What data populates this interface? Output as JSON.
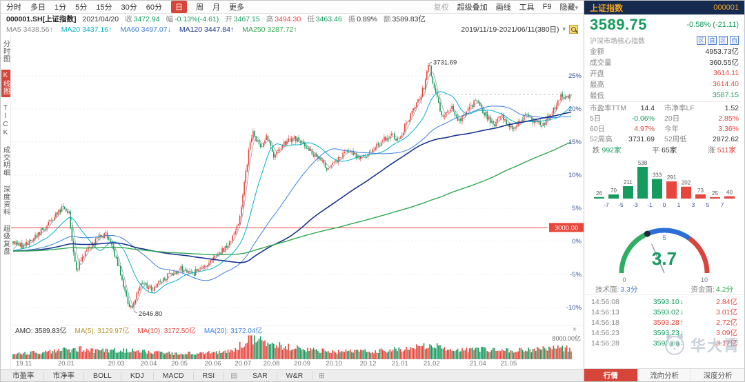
{
  "colors": {
    "up": "#e8453c",
    "down": "#169b5f",
    "header_bg": "#152a4e",
    "header_text": "#f5a623",
    "accent": "#d5453a",
    "axis_text": "#3b5598"
  },
  "icons": {
    "caret_down": "▾",
    "close": "×",
    "grid": "⊞",
    "panel": "▤"
  },
  "toolbar": {
    "periods": [
      "分时",
      "多日",
      "1分",
      "5分",
      "15分",
      "30分",
      "60分",
      "日",
      "周",
      "月",
      "更多"
    ],
    "active_period": "日",
    "right_items": [
      "复权",
      "超级叠加",
      "画线",
      "工具",
      "F9",
      "隐藏"
    ]
  },
  "info_bar": {
    "symbol": "000001.SH[上证指数]",
    "date": "2021/04/20",
    "fields": [
      {
        "label": "收",
        "value": "3472.94",
        "color": "green"
      },
      {
        "label": "幅",
        "value": "-0.13%(-4.61)",
        "color": "green"
      },
      {
        "label": "开",
        "value": "3467.15",
        "color": "green"
      },
      {
        "label": "高",
        "value": "3494.30",
        "color": "red"
      },
      {
        "label": "低",
        "value": "3463.46",
        "color": "green"
      },
      {
        "label": "振",
        "value": "0.89%",
        "color": "black"
      },
      {
        "label": "额",
        "value": "3589.83亿",
        "color": "black"
      }
    ]
  },
  "ma_bar": {
    "items": [
      {
        "text": "MA5 3438.56↑",
        "color": "gray"
      },
      {
        "text": "MA20 3437.16↑",
        "color": "cyan"
      },
      {
        "text": "MA60 3497.07↓",
        "color": "blue"
      },
      {
        "text": "MA120 3447.84↑",
        "color": "navy"
      },
      {
        "text": "MA250 3287.72↑",
        "color": "mgreen"
      }
    ],
    "range": "2019/11/19-2021/06/11(380日)"
  },
  "sidebar": {
    "items": [
      "分时图",
      "K线图",
      "TICK",
      "成交明细",
      "深度资料",
      "超级复盘"
    ],
    "active": "K线图"
  },
  "chart": {
    "type": "candlestick",
    "candles": 380,
    "baseline": 2940.08,
    "prehistory_pct": -1.5,
    "hline_pct": 2.04,
    "hline_label": "3000.00",
    "high_label": "3731.69",
    "low_label": "2646.80",
    "vol_scale": 8000,
    "vol_axis_label": "8000.00亿",
    "y_ticks": [
      {
        "label": "25%",
        "pct": 25
      },
      {
        "label": "20%",
        "pct": 20
      },
      {
        "label": "15%",
        "pct": 15
      },
      {
        "label": "10%",
        "pct": 10
      },
      {
        "label": "5%",
        "pct": 5
      },
      {
        "label": "0%",
        "pct": 0
      },
      {
        "label": "-5%",
        "pct": -5
      },
      {
        "label": "-10%",
        "pct": -10
      }
    ],
    "ma_lines": [
      {
        "n": 5,
        "color": "#9a9a9a",
        "w": 0.8
      },
      {
        "n": 20,
        "color": "#00b0c8",
        "w": 1
      },
      {
        "n": 60,
        "color": "#3b7de0",
        "w": 1
      },
      {
        "n": 120,
        "color": "#17328f",
        "w": 1.6
      },
      {
        "n": 250,
        "color": "#2fa84f",
        "w": 1.4
      }
    ],
    "x_labels": [
      {
        "text": "19.11",
        "f": 0.005
      },
      {
        "text": "20.01",
        "f": 0.095
      },
      {
        "text": "20.03",
        "f": 0.185
      },
      {
        "text": "20.04",
        "f": 0.243
      },
      {
        "text": "20.05",
        "f": 0.298
      },
      {
        "text": "20.06",
        "f": 0.358
      },
      {
        "text": "20.07",
        "f": 0.412
      },
      {
        "text": "20.08",
        "f": 0.463
      },
      {
        "text": "20.09",
        "f": 0.518
      },
      {
        "text": "20.10",
        "f": 0.575
      },
      {
        "text": "20.12",
        "f": 0.636
      },
      {
        "text": "21.01",
        "f": 0.693
      },
      {
        "text": "21.02",
        "f": 0.75
      },
      {
        "text": "21.04",
        "f": 0.833
      },
      {
        "text": "21.05",
        "f": 0.888
      }
    ],
    "keypoints": [
      [
        0.0,
        0.0
      ],
      [
        0.02,
        -0.8
      ],
      [
        0.05,
        1.5
      ],
      [
        0.075,
        3.8
      ],
      [
        0.09,
        5.2
      ],
      [
        0.1,
        4.2
      ],
      [
        0.113,
        -4.5
      ],
      [
        0.125,
        -2.0
      ],
      [
        0.15,
        0.2
      ],
      [
        0.165,
        1.2
      ],
      [
        0.185,
        -2.5
      ],
      [
        0.205,
        -9.3
      ],
      [
        0.212,
        -10.3
      ],
      [
        0.228,
        -6.2
      ],
      [
        0.25,
        -7.2
      ],
      [
        0.27,
        -5.5
      ],
      [
        0.3,
        -4.2
      ],
      [
        0.325,
        -4.8
      ],
      [
        0.355,
        -2.8
      ],
      [
        0.385,
        -0.8
      ],
      [
        0.405,
        3.0
      ],
      [
        0.422,
        13.5
      ],
      [
        0.43,
        16.8
      ],
      [
        0.443,
        13.8
      ],
      [
        0.455,
        15.8
      ],
      [
        0.468,
        12.8
      ],
      [
        0.485,
        14.8
      ],
      [
        0.505,
        15.6
      ],
      [
        0.53,
        13.8
      ],
      [
        0.55,
        12.3
      ],
      [
        0.565,
        10.8
      ],
      [
        0.585,
        12.6
      ],
      [
        0.605,
        13.8
      ],
      [
        0.622,
        12.3
      ],
      [
        0.645,
        13.8
      ],
      [
        0.663,
        15.2
      ],
      [
        0.678,
        16.2
      ],
      [
        0.69,
        15.2
      ],
      [
        0.7,
        17.0
      ],
      [
        0.715,
        19.5
      ],
      [
        0.727,
        21.3
      ],
      [
        0.737,
        23.5
      ],
      [
        0.745,
        26.8
      ],
      [
        0.758,
        22.0
      ],
      [
        0.77,
        18.5
      ],
      [
        0.785,
        20.5
      ],
      [
        0.8,
        18.0
      ],
      [
        0.815,
        19.8
      ],
      [
        0.83,
        21.3
      ],
      [
        0.845,
        19.3
      ],
      [
        0.86,
        17.5
      ],
      [
        0.875,
        18.8
      ],
      [
        0.89,
        17.2
      ],
      [
        0.905,
        17.8
      ],
      [
        0.92,
        19.2
      ],
      [
        0.935,
        18.0
      ],
      [
        0.95,
        17.5
      ],
      [
        0.965,
        19.5
      ],
      [
        0.98,
        21.8
      ],
      [
        1.0,
        22.1
      ]
    ],
    "vol_keypoints": [
      [
        0.0,
        1600
      ],
      [
        0.05,
        2400
      ],
      [
        0.09,
        3000
      ],
      [
        0.12,
        3400
      ],
      [
        0.15,
        2800
      ],
      [
        0.21,
        3000
      ],
      [
        0.25,
        2200
      ],
      [
        0.3,
        1900
      ],
      [
        0.35,
        2300
      ],
      [
        0.39,
        2900
      ],
      [
        0.415,
        5500
      ],
      [
        0.425,
        7200
      ],
      [
        0.435,
        6600
      ],
      [
        0.45,
        5800
      ],
      [
        0.47,
        4800
      ],
      [
        0.5,
        3800
      ],
      [
        0.53,
        3000
      ],
      [
        0.57,
        2600
      ],
      [
        0.62,
        2500
      ],
      [
        0.66,
        2800
      ],
      [
        0.7,
        3300
      ],
      [
        0.72,
        3900
      ],
      [
        0.745,
        4400
      ],
      [
        0.77,
        3800
      ],
      [
        0.8,
        3100
      ],
      [
        0.84,
        3300
      ],
      [
        0.87,
        2900
      ],
      [
        0.9,
        3100
      ],
      [
        0.93,
        3300
      ],
      [
        0.96,
        3500
      ],
      [
        1.0,
        3600
      ]
    ]
  },
  "amo_bar": {
    "items": [
      {
        "text": "AMO: 3589.83亿",
        "color": "black"
      },
      {
        "text": "MA(5): 3129.97亿",
        "color": "yellow"
      },
      {
        "text": "MA(10): 3172.50亿",
        "color": "red"
      },
      {
        "text": "MA(20): 3172.04亿",
        "color": "blue"
      }
    ]
  },
  "bottom_tabs": [
    "市盈率",
    "市净率",
    "BOLL",
    "KDJ",
    "MACD",
    "RSI",
    "SAR",
    "W&R"
  ],
  "panel": {
    "header": {
      "name": "上证指数",
      "code": "000001"
    },
    "price": "3589.75",
    "price_color": "green",
    "change": "-0.58% (-21.11)",
    "change_color": "green",
    "subtitle": "沪深市场核心指数",
    "badges": [
      "区",
      "直",
      "区",
      "自"
    ],
    "stats": [
      {
        "label": "金额",
        "value": "4953.73亿",
        "color": "black"
      },
      {
        "label": "成交量",
        "value": "360.55亿",
        "color": "black"
      },
      {
        "label": "开盘",
        "value": "3614.11",
        "color": "red"
      },
      {
        "label": "最高",
        "value": "3614.40",
        "color": "red"
      },
      {
        "label": "最低",
        "value": "3587.15",
        "color": "green"
      }
    ],
    "pairs": [
      [
        {
          "label": "市盈率TTM",
          "value": "14.4",
          "color": "black"
        },
        {
          "label": "市净率LF",
          "value": "1.52",
          "color": "black"
        }
      ],
      [
        {
          "label": "5日",
          "value": "-0.06%",
          "color": "green"
        },
        {
          "label": "20日",
          "value": "2.85%",
          "color": "red"
        }
      ],
      [
        {
          "label": "60日",
          "value": "4.97%",
          "color": "red"
        },
        {
          "label": "今年",
          "value": "3.36%",
          "color": "red"
        }
      ],
      [
        {
          "label": "52周高",
          "value": "3731.69",
          "color": "black"
        },
        {
          "label": "52周低",
          "value": "2872.62",
          "color": "black"
        }
      ]
    ],
    "breadth": {
      "down_label": "跌",
      "down": "992家",
      "flat_label": "平",
      "flat": "65家",
      "up_label": "涨",
      "up": "511家"
    },
    "histogram": {
      "values": [
        26,
        70,
        211,
        538,
        333,
        291,
        202,
        73,
        25,
        40
      ],
      "colors": [
        "down",
        "down",
        "down",
        "down",
        "down",
        "up",
        "up",
        "up",
        "up",
        "up"
      ],
      "labels": [
        "-7",
        "-5",
        "-3",
        "-1",
        "0",
        "1",
        "3",
        "5",
        "7"
      ]
    },
    "gauge": {
      "value": 3.7,
      "max": 10,
      "value_text": "3.7",
      "min_label": "0",
      "mid_label": "5",
      "max_label": "10",
      "segments": [
        {
          "to": 3.5,
          "color": "#2fae63"
        },
        {
          "to": 7.0,
          "color": "#2b6fd6"
        },
        {
          "to": 10,
          "color": "#d8433a"
        }
      ],
      "footer": [
        {
          "label": "技术面:",
          "value": "3.3分",
          "color": "blue"
        },
        {
          "label": "资金面:",
          "value": "4.2分",
          "color": "mgreen"
        }
      ]
    },
    "ticks": [
      {
        "time": "14:56:08",
        "price": "3593.10",
        "arrow": "↓",
        "color": "green",
        "amount": "2.84亿"
      },
      {
        "time": "14:56:13",
        "price": "3593.02",
        "arrow": "↓",
        "color": "green",
        "amount": "3.01亿"
      },
      {
        "time": "14:56:18",
        "price": "3593.28",
        "arrow": "↑",
        "color": "red",
        "amount": "2.72亿"
      },
      {
        "time": "14:56:23",
        "price": "3593.23",
        "arrow": "↓",
        "color": "green",
        "amount": "3.09亿"
      },
      {
        "time": "14:56:28",
        "price": "3592.86",
        "arrow": "↓",
        "color": "green",
        "amount": "3.17亿"
      }
    ],
    "tabs": [
      {
        "label": "行情",
        "active": true
      },
      {
        "label": "流向分析",
        "active": false
      },
      {
        "label": "深度分析",
        "active": false
      }
    ],
    "watermark": "华大霄"
  }
}
